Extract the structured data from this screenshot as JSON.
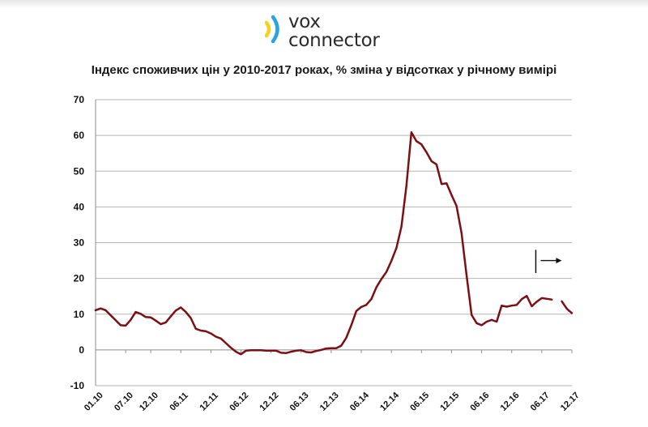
{
  "brand": {
    "line1": "vox",
    "line2": "connector"
  },
  "colors": {
    "series": "#7b0f14",
    "grid": "#b5b5b5",
    "axis": "#8c8c8c",
    "logo_blue": "#2aa3e0",
    "logo_yellow": "#f6d21a"
  },
  "icons": {
    "logo": "signal-wave-icon",
    "annotation": "arrow-right-icon"
  },
  "chart_data": {
    "type": "line",
    "title": "Індекс споживчих цін у 2010-2017 роках, % зміна у відсотках у річному вимірі",
    "xlabel": "",
    "ylabel": "",
    "ylim": [
      -10,
      70
    ],
    "yticks": [
      -10,
      0,
      10,
      20,
      30,
      40,
      50,
      60,
      70
    ],
    "x_tick_labels": [
      "01.10",
      "07.10",
      "12.10",
      "06.11",
      "12.11",
      "06.12",
      "12.12",
      "06.13",
      "12.13",
      "06.14",
      "12.14",
      "06.15",
      "12.15",
      "06.16",
      "12.16",
      "06.17",
      "12.17"
    ],
    "x_tick_months": [
      0,
      6,
      11,
      17,
      23,
      29,
      35,
      41,
      47,
      53,
      59,
      65,
      71,
      77,
      83,
      89,
      95
    ],
    "grid": "horizontal",
    "legend": "none",
    "annotation": "vertical marker with arrow pointing right near 04.17",
    "series": [
      {
        "x": [
          "01.10",
          "02.10",
          "03.10",
          "04.10",
          "05.10",
          "06.10",
          "07.10",
          "08.10",
          "09.10",
          "10.10",
          "11.10",
          "12.10",
          "01.11",
          "02.11",
          "03.11",
          "04.11",
          "05.11",
          "06.11",
          "07.11",
          "08.11",
          "09.11",
          "10.11",
          "11.11",
          "12.11",
          "01.12",
          "02.12",
          "03.12",
          "04.12",
          "05.12",
          "06.12",
          "07.12",
          "08.12",
          "09.12",
          "10.12",
          "11.12",
          "12.12",
          "01.13",
          "02.13",
          "03.13",
          "04.13",
          "05.13",
          "06.13",
          "07.13",
          "08.13",
          "09.13",
          "10.13",
          "11.13",
          "12.13",
          "01.14",
          "02.14",
          "03.14",
          "04.14",
          "05.14",
          "06.14",
          "07.14",
          "08.14",
          "09.14",
          "10.14",
          "11.14",
          "12.14",
          "01.15",
          "02.15",
          "03.15",
          "04.15",
          "05.15",
          "06.15",
          "07.15",
          "08.15",
          "09.15",
          "10.15",
          "11.15",
          "12.15",
          "01.16",
          "02.16",
          "03.16",
          "04.16",
          "05.16",
          "06.16",
          "07.16",
          "08.16",
          "09.16",
          "10.16",
          "11.16",
          "12.16",
          "01.17",
          "02.17",
          "03.17",
          "04.17",
          "05.17",
          "06.17",
          "07.17",
          "08.17",
          "09.17",
          "10.17",
          "11.17",
          "12.17"
        ],
        "values": [
          11.1,
          11.6,
          11.1,
          9.7,
          8.3,
          6.9,
          6.8,
          8.4,
          10.6,
          10.1,
          9.2,
          9.1,
          8.2,
          7.2,
          7.7,
          9.4,
          11.0,
          11.9,
          10.6,
          8.9,
          5.9,
          5.4,
          5.2,
          4.6,
          3.7,
          3.2,
          1.9,
          0.6,
          -0.5,
          -1.2,
          -0.2,
          -0.1,
          -0.1,
          -0.1,
          -0.2,
          -0.2,
          -0.2,
          -0.8,
          -0.9,
          -0.5,
          -0.2,
          -0.1,
          -0.6,
          -0.7,
          -0.3,
          0.0,
          0.4,
          0.5,
          0.5,
          1.2,
          3.4,
          6.9,
          10.9,
          12.0,
          12.6,
          14.2,
          17.5,
          19.8,
          21.8,
          24.9,
          28.5,
          34.5,
          45.8,
          60.9,
          58.4,
          57.5,
          55.3,
          52.8,
          51.9,
          46.4,
          46.6,
          43.3,
          40.3,
          32.7,
          20.9,
          9.8,
          7.5,
          6.9,
          7.9,
          8.4,
          7.9,
          12.4,
          12.1,
          12.4,
          12.6,
          14.2,
          15.1,
          12.2,
          13.5,
          14.5,
          14.3,
          14.1,
          null,
          13.6,
          11.5,
          10.3
        ]
      }
    ]
  }
}
